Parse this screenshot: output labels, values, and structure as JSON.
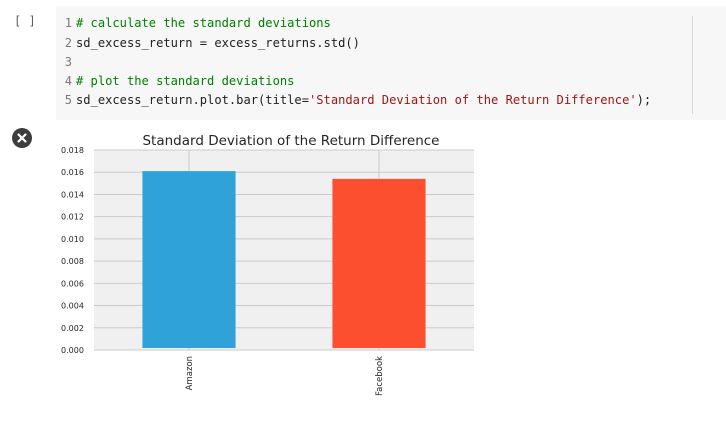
{
  "cell": {
    "run_indicator": "[ ]",
    "lines": [
      {
        "num": "1",
        "comment": "# calculate the standard deviations"
      },
      {
        "num": "2",
        "text": "sd_excess_return = excess_returns.std()"
      },
      {
        "num": "3",
        "text": ""
      },
      {
        "num": "4",
        "comment": "# plot the standard deviations"
      },
      {
        "num": "5",
        "prefix": "sd_excess_return.plot.bar(title=",
        "string": "'Standard Deviation of the Return Difference'",
        "suffix": ");"
      }
    ]
  },
  "output": {
    "clear_icon": "close-icon"
  },
  "chart_data": {
    "type": "bar",
    "title": "Standard Deviation of the Return Difference",
    "categories": [
      "Amazon",
      "Facebook"
    ],
    "values": [
      0.0161,
      0.0154
    ],
    "colors": [
      "#30a2da",
      "#fc4f30"
    ],
    "ylim": [
      0.0,
      0.018
    ],
    "yticks": [
      "0.000",
      "0.002",
      "0.004",
      "0.006",
      "0.008",
      "0.010",
      "0.012",
      "0.014",
      "0.016",
      "0.018"
    ],
    "grid": true,
    "background": "#f0f0f0"
  }
}
